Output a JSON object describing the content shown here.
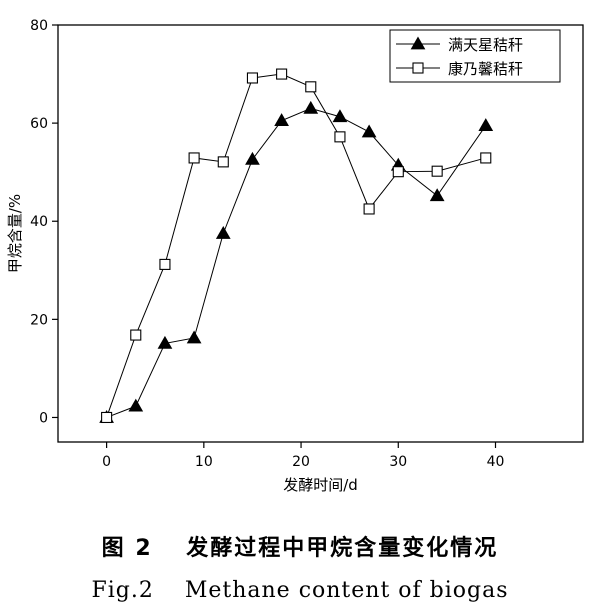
{
  "chart_data": {
    "type": "line",
    "xlabel": "发酵时间/d",
    "ylabel": "甲烷含量/%",
    "xlim": [
      -5,
      49
    ],
    "ylim": [
      -5,
      80
    ],
    "xticks": [
      0,
      10,
      20,
      30,
      40
    ],
    "yticks": [
      0,
      20,
      40,
      60,
      80
    ],
    "legend_position": "top-right",
    "grid": false,
    "series": [
      {
        "name": "满天星秸秆",
        "marker": "filled-triangle",
        "color": "#000000",
        "x": [
          0,
          3,
          6,
          9,
          12,
          15,
          18,
          21,
          24,
          27,
          30,
          34,
          39
        ],
        "y": [
          0,
          2.3,
          15.1,
          16.2,
          37.5,
          52.6,
          60.5,
          63.0,
          61.3,
          58.2,
          51.4,
          45.2,
          59.5
        ]
      },
      {
        "name": "康乃馨秸秆",
        "marker": "open-square",
        "color": "#000000",
        "x": [
          0,
          3,
          6,
          9,
          12,
          15,
          18,
          21,
          24,
          27,
          30,
          34,
          39
        ],
        "y": [
          0,
          16.8,
          31.2,
          52.9,
          52.1,
          69.2,
          70.0,
          67.4,
          57.2,
          42.5,
          50.1,
          50.2,
          52.9
        ]
      }
    ]
  },
  "caption": {
    "chinese": "图 2　 发酵过程中甲烷含量变化情况",
    "english": "Fig.2　 Methane content of biogas"
  }
}
